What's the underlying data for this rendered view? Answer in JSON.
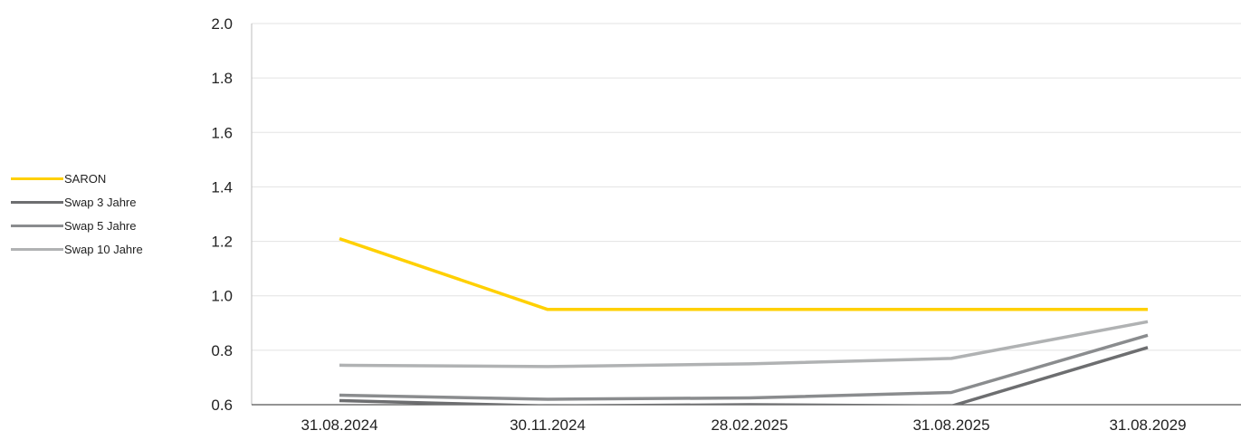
{
  "chart_data": {
    "type": "line",
    "title": "",
    "xlabel": "",
    "ylabel": "",
    "categories": [
      "31.08.2024",
      "30.11.2024",
      "28.02.2025",
      "31.08.2025",
      "31.08.2029"
    ],
    "yticks": [
      "2.0",
      "1.8",
      "1.6",
      "1.4",
      "1.2",
      "1.0",
      "0.8",
      "0.6"
    ],
    "ylim": [
      0.6,
      2.0
    ],
    "grid": true,
    "legend_position": "left",
    "series": [
      {
        "name": "SARON",
        "color": "#FFD000",
        "values": [
          1.21,
          0.95,
          0.95,
          0.95,
          0.95
        ]
      },
      {
        "name": "Swap 3 Jahre",
        "color": "#6D6E70",
        "values": [
          0.615,
          0.595,
          0.6,
          0.595,
          0.81
        ]
      },
      {
        "name": "Swap 5 Jahre",
        "color": "#8A8C8E",
        "values": [
          0.635,
          0.62,
          0.625,
          0.645,
          0.855
        ]
      },
      {
        "name": "Swap 10 Jahre",
        "color": "#B0B2B3",
        "values": [
          0.745,
          0.74,
          0.75,
          0.77,
          0.905
        ]
      }
    ]
  }
}
